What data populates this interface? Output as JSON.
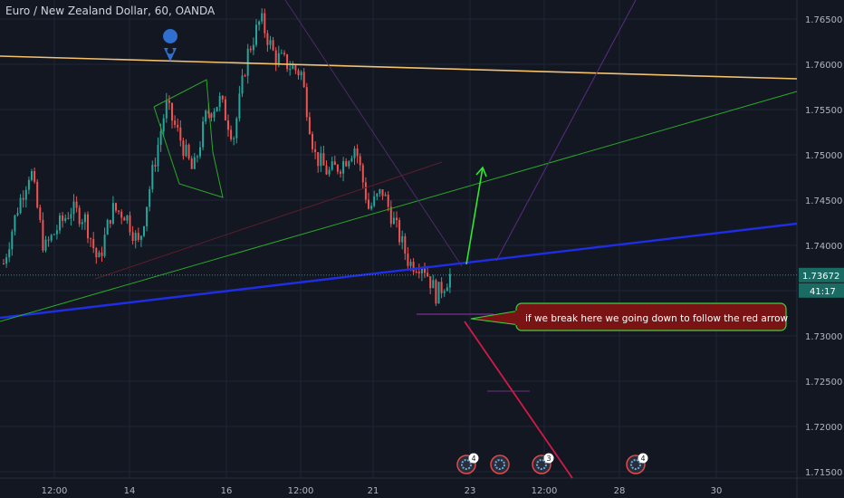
{
  "header": {
    "title": "Euro / New Zealand Dollar, 60, OANDA"
  },
  "colors": {
    "background": "#131722",
    "grid": "#1f2535",
    "axis_text": "#b2b5be",
    "bull": "#26a69a",
    "bear": "#ef5350",
    "price_badge": "#1a6b63",
    "annotation_bg": "#7a1414",
    "annotation_border": "#3fd03f",
    "blue_line": "#1f2ee6",
    "orange_line": "#f3c26b",
    "green_line": "#2aa82a",
    "purple_line": "#7a2c92",
    "red_arrow": "#d11a48",
    "bright_green_arrow": "#2ee82e"
  },
  "annotation": {
    "text": "if we break here we going down to follow the red arrow"
  },
  "price_badge": {
    "price": "1.73672",
    "countdown": "41:17"
  },
  "event_icons": [
    {
      "count": "4"
    },
    {
      "count": ""
    },
    {
      "count": "3"
    },
    {
      "count": "4"
    }
  ],
  "chart_data": {
    "type": "candlestick",
    "title": "Euro / New Zealand Dollar, 60, OANDA",
    "symbol": "EURNZD",
    "interval": "60",
    "source": "OANDA",
    "last_price": 1.73672,
    "ylim": [
      1.715,
      1.7665
    ],
    "y_ticks": [
      "1.76500",
      "1.76000",
      "1.75500",
      "1.75000",
      "1.74500",
      "1.74000",
      "1.73500",
      "1.73000",
      "1.72500",
      "1.72000",
      "1.71500"
    ],
    "x_ticks": [
      "12:00",
      "14",
      "16",
      "12:00",
      "21",
      "23",
      "12:00",
      "28",
      "30"
    ],
    "grid": true,
    "price_path": [
      1.738,
      1.744,
      1.7485,
      1.7395,
      1.742,
      1.744,
      1.743,
      1.738,
      1.744,
      1.7435,
      1.74,
      1.748,
      1.7555,
      1.752,
      1.748,
      1.7545,
      1.756,
      1.752,
      1.761,
      1.765,
      1.761,
      1.76,
      1.759,
      1.75,
      1.748,
      1.749,
      1.751,
      1.744,
      1.746,
      1.742,
      1.738,
      1.738,
      1.7345,
      1.7367
    ]
  }
}
